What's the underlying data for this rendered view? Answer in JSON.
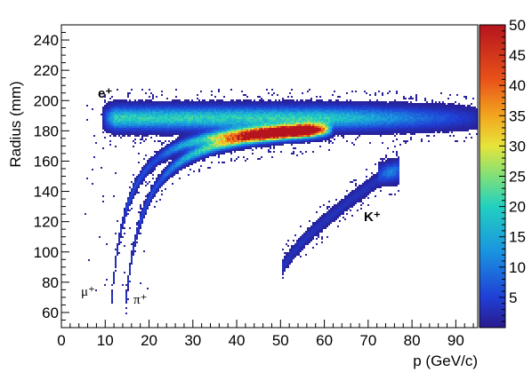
{
  "chart_data": {
    "type": "heatmap",
    "title": "",
    "xlabel": "p (GeV/c)",
    "ylabel": "Radius (mm)",
    "xlim": [
      0,
      95
    ],
    "ylim": [
      50,
      250
    ],
    "x_ticks": [
      0,
      10,
      20,
      30,
      40,
      50,
      60,
      70,
      80,
      90
    ],
    "y_ticks": [
      60,
      80,
      100,
      120,
      140,
      160,
      180,
      200,
      220,
      240
    ],
    "colorbar": {
      "min": 0,
      "max": 50,
      "ticks": [
        5,
        10,
        15,
        20,
        25,
        30,
        35,
        40,
        45,
        50
      ]
    },
    "annotations": [
      {
        "text": "e⁺",
        "x": 10,
        "y": 200
      },
      {
        "text": "μ⁺",
        "x": 5,
        "y": 77
      },
      {
        "text": "π⁺",
        "x": 17,
        "y": 71
      },
      {
        "text": "K⁺",
        "x": 70,
        "y": 120
      }
    ],
    "bands": [
      {
        "label": "e⁺",
        "x_range": [
          9,
          95
        ],
        "y_center": 189,
        "peak_count": 20
      },
      {
        "label": "μ⁺",
        "p_threshold": 10.5,
        "x_range": [
          10.5,
          60
        ],
        "y_plateau": 185,
        "peak_count": 50
      },
      {
        "label": "π⁺",
        "p_threshold": 13.5,
        "x_range": [
          13.5,
          60
        ],
        "y_plateau": 185,
        "peak_count": 50
      },
      {
        "label": "K⁺",
        "p_threshold": 50,
        "x_range": [
          50,
          77
        ],
        "y_range": [
          88,
          158
        ],
        "peak_count": 8
      }
    ]
  }
}
